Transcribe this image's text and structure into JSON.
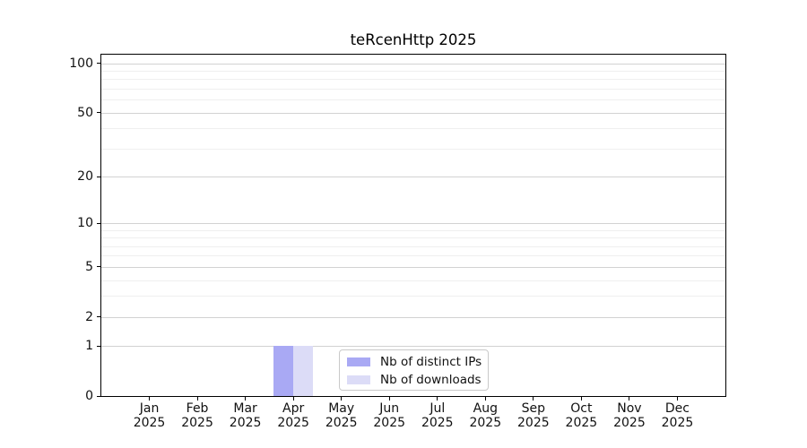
{
  "figure": {
    "background": "#ffffff"
  },
  "chart_data": {
    "type": "bar",
    "title": "teRcenHttp 2025",
    "x_categories": [
      "Jan",
      "Feb",
      "Mar",
      "Apr",
      "May",
      "Jun",
      "Jul",
      "Aug",
      "Sep",
      "Oct",
      "Nov",
      "Dec"
    ],
    "x_year_line": "2025",
    "series": [
      {
        "name": "Nb of distinct IPs",
        "color": "#a9a9f4",
        "values": [
          0,
          0,
          0,
          1,
          0,
          0,
          0,
          0,
          0,
          0,
          0,
          0
        ]
      },
      {
        "name": "Nb of downloads",
        "color": "#dcdcf7",
        "values": [
          0,
          0,
          0,
          1,
          0,
          0,
          0,
          0,
          0,
          0,
          0,
          0
        ]
      }
    ],
    "yticks": [
      0,
      1,
      2,
      5,
      10,
      20,
      50,
      100
    ],
    "minor_yticks": [
      3,
      4,
      6,
      7,
      8,
      9,
      30,
      40,
      60,
      70,
      80,
      90
    ],
    "scale": "log1p",
    "ylim": [
      0,
      113
    ],
    "grid": true,
    "legend_position": "lower-center",
    "colors": {
      "axis": "#000000",
      "grid_major": "#d2d2d2",
      "grid_minor": "#efefef",
      "text": "#111111"
    }
  }
}
